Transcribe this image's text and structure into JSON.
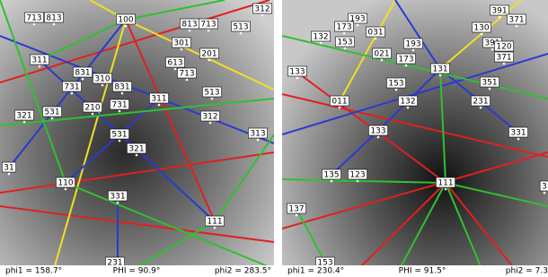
{
  "panels": [
    {
      "labels": [
        "713",
        "813",
        "100",
        "813",
        "713",
        "513",
        "312",
        "301",
        "311",
        "201",
        "613",
        "831",
        "310",
        "731",
        "831",
        "713",
        "513",
        "311",
        "731",
        "210",
        "321",
        "531",
        "312",
        "313",
        "531",
        "321",
        "31",
        "110",
        "331",
        "111",
        "231"
      ],
      "footer": {
        "phi1": "phi1 = 158.7°",
        "PHI": "PHI = 90.9°",
        "phi2": "phi2 = 283.5°"
      }
    },
    {
      "labels": [
        "391",
        "193",
        "173",
        "031",
        "193",
        "132",
        "153",
        "130",
        "371",
        "391",
        "120",
        "021",
        "173",
        "371",
        "131",
        "133",
        "153",
        "351",
        "132",
        "231",
        "011",
        "133",
        "331",
        "135",
        "123",
        "111",
        "3",
        "137",
        "153"
      ],
      "footer": {
        "phi1": "phi1 = 230.4°",
        "PHI": "PHI = 91.5°",
        "phi2": "phi2 = 7.3"
      }
    }
  ]
}
